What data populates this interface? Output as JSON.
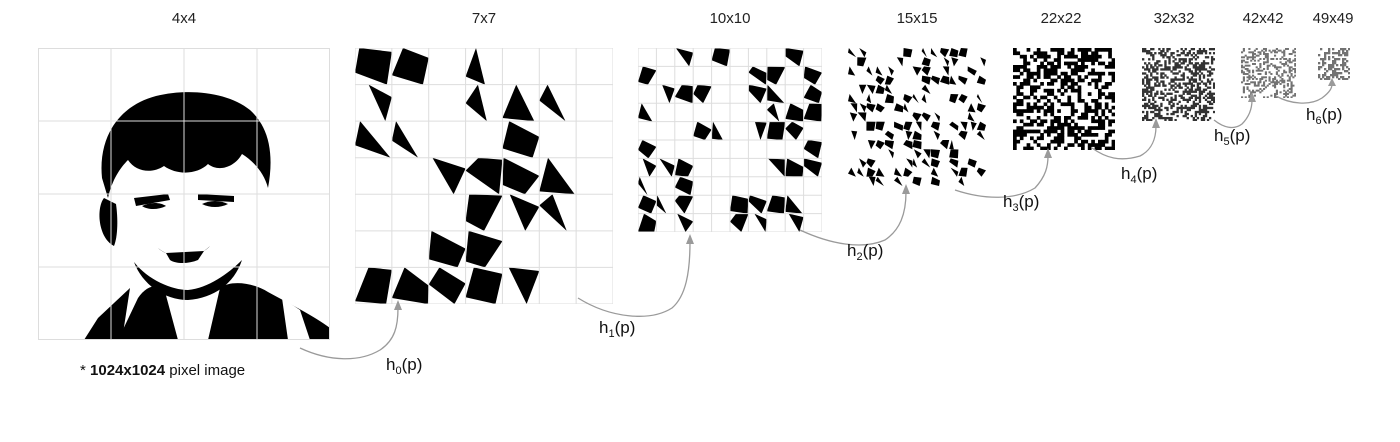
{
  "stages": [
    {
      "label": "4x4",
      "hfunc": "h",
      "sub": "0",
      "arg": "(p)"
    },
    {
      "label": "7x7",
      "hfunc": "h",
      "sub": "1",
      "arg": "(p)"
    },
    {
      "label": "10x10",
      "hfunc": "h",
      "sub": "2",
      "arg": "(p)"
    },
    {
      "label": "15x15",
      "hfunc": "h",
      "sub": "3",
      "arg": "(p)"
    },
    {
      "label": "22x22",
      "hfunc": "h",
      "sub": "4",
      "arg": "(p)"
    },
    {
      "label": "32x32",
      "hfunc": "h",
      "sub": "5",
      "arg": "(p)"
    },
    {
      "label": "42x42",
      "hfunc": "h",
      "sub": "6",
      "arg": "(p)"
    },
    {
      "label": "49x49"
    }
  ],
  "caption": {
    "star": "*",
    "size": "1024x1024",
    "rest": "pixel image"
  },
  "colors": {
    "ink": "#000000",
    "grid": "#dddddd",
    "arrow": "#9a9a9a"
  }
}
